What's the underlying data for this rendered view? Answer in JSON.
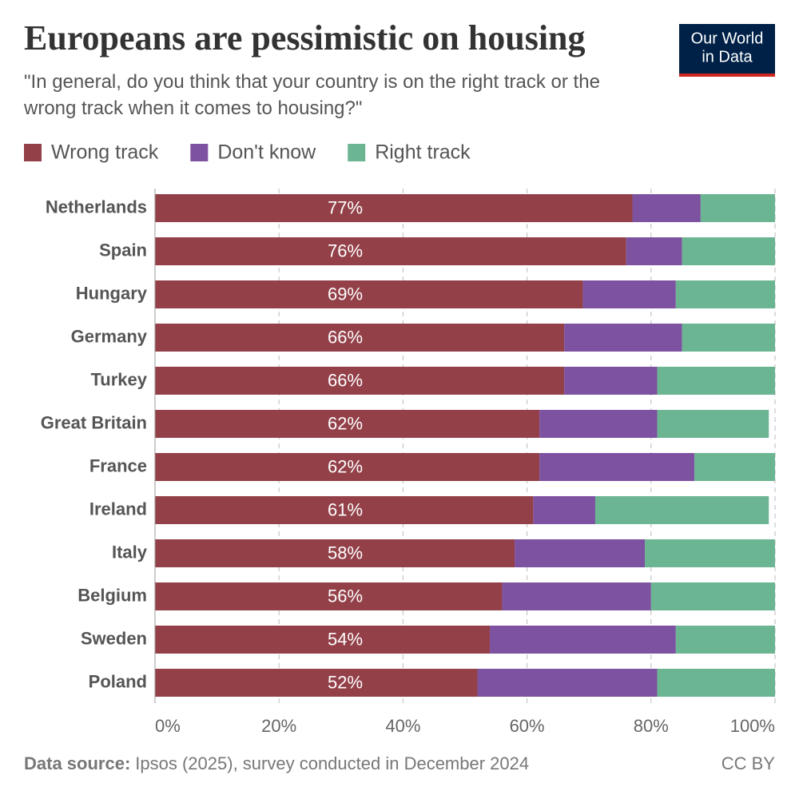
{
  "chart_data": {
    "type": "stacked-barh",
    "title": "Europeans are pessimistic on housing",
    "subtitle": "\"In general, do you think that your country is on the right track or the wrong track when it comes to housing?\"",
    "logo": [
      "Our World",
      "in Data"
    ],
    "source_label": "Data source:",
    "source": "Ipsos (2025), survey conducted in December 2024",
    "license": "CC BY",
    "categories": [
      "Netherlands",
      "Spain",
      "Hungary",
      "Germany",
      "Turkey",
      "Great Britain",
      "France",
      "Ireland",
      "Italy",
      "Belgium",
      "Sweden",
      "Poland"
    ],
    "series": [
      {
        "name": "Wrong track",
        "color": "#934049",
        "values": [
          77,
          76,
          69,
          66,
          66,
          62,
          62,
          61,
          58,
          56,
          54,
          52
        ],
        "value_labels": [
          "77%",
          "76%",
          "69%",
          "66%",
          "66%",
          "62%",
          "62%",
          "61%",
          "58%",
          "56%",
          "54%",
          "52%"
        ]
      },
      {
        "name": "Don't know",
        "color": "#7d52a0",
        "values": [
          11,
          9,
          15,
          19,
          15,
          19,
          25,
          10,
          21,
          24,
          30,
          29
        ]
      },
      {
        "name": "Right track",
        "color": "#6bb593",
        "values": [
          12,
          15,
          16,
          15,
          19,
          18,
          13,
          28,
          21,
          20,
          16,
          19
        ]
      }
    ],
    "xlim": [
      0,
      100
    ],
    "xticks": [
      {
        "value": 0,
        "label": "0%"
      },
      {
        "value": 20,
        "label": "20%"
      },
      {
        "value": 40,
        "label": "40%"
      },
      {
        "value": 60,
        "label": "60%"
      },
      {
        "value": 80,
        "label": "80%"
      },
      {
        "value": 100,
        "label": "100%"
      }
    ],
    "grid": true
  }
}
